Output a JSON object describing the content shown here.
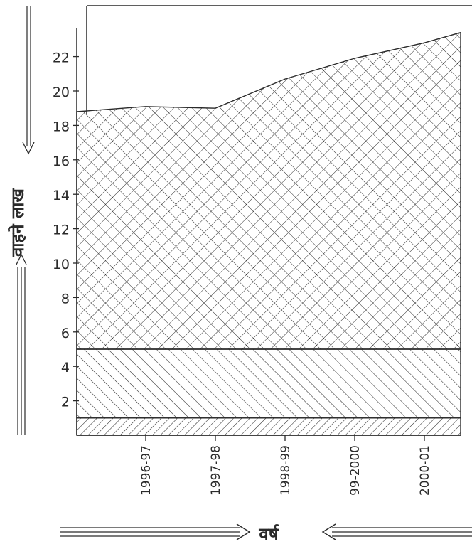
{
  "chart_data": {
    "type": "area",
    "stacked": true,
    "title": "",
    "ylabel": "वाहने लाख",
    "xlabel": "वर्ष",
    "categories": [
      "1996-97",
      "1997-98",
      "1998-99",
      "99-2000",
      "2000-01"
    ],
    "y_ticks": [
      "2",
      "4",
      "6",
      "8",
      "10",
      "12",
      "14",
      "16",
      "18",
      "20",
      "22"
    ],
    "ylim": [
      0,
      24
    ],
    "grid": false,
    "legend": "none",
    "hatch_patterns": [
      "fine-diagonal",
      "wide-diagonal",
      "cross-hatch"
    ],
    "bands": [
      {
        "lower": [
          0,
          0,
          0,
          0,
          0
        ],
        "upper": [
          1,
          1,
          1,
          1,
          1
        ],
        "pattern": "fine-diagonal"
      },
      {
        "lower": [
          1,
          1,
          1,
          1,
          1
        ],
        "upper": [
          5,
          5,
          5,
          5,
          5
        ],
        "pattern": "wide-diagonal"
      },
      {
        "lower": [
          5,
          5,
          5,
          5,
          5
        ],
        "upper": [
          19.1,
          19.0,
          20.7,
          21.9,
          22.8
        ],
        "pattern": "cross-hatch"
      }
    ],
    "area_left_edge_value": 18.8,
    "area_right_edge_value": 23.4
  },
  "colors": {
    "ink": "#2a2a2a",
    "paper": "#ffffff"
  }
}
